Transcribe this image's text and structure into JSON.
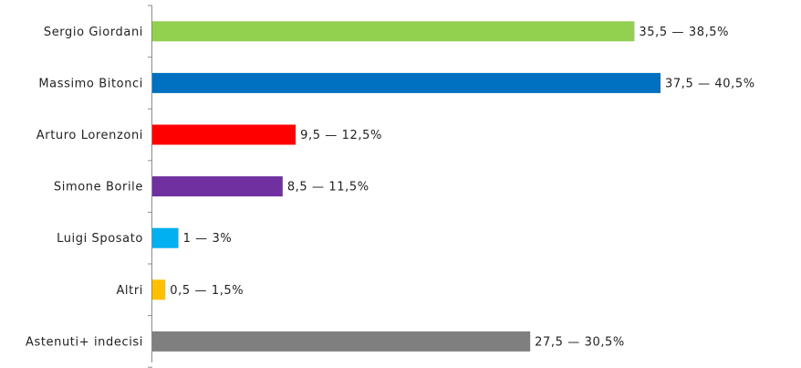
{
  "chart_data": {
    "type": "bar",
    "orientation": "horizontal",
    "categories": [
      "Sergio Giordani",
      "Massimo Bitonci",
      "Arturo Lorenzoni",
      "Simone Borile",
      "Luigi Sposato",
      "Altri",
      "Astenuti+ indecisi"
    ],
    "values": [
      37,
      39,
      11,
      10,
      2,
      1,
      29
    ],
    "value_labels": [
      "35,5 — 38,5%",
      "37,5 — 40,5%",
      "9,5 — 12,5%",
      "8,5 — 11,5%",
      "1 — 3%",
      "0,5 — 1,5%",
      "27,5 — 30,5%"
    ],
    "colors": [
      "#92d050",
      "#0070c0",
      "#ff0000",
      "#7030a0",
      "#00b0f0",
      "#ffc000",
      "#7f7f7f"
    ],
    "xlim": [
      0,
      39
    ],
    "grid": false,
    "legend": "none"
  }
}
